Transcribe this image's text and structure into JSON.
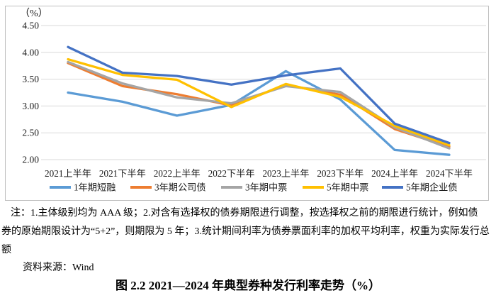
{
  "chart_data": {
    "type": "line",
    "title": "图 2.2  2021—2024 年典型券种发行利率走势（%）",
    "unit_label": "（%）",
    "ylabel": "",
    "xlabel": "",
    "ylim": [
      2.0,
      4.5
    ],
    "y_ticks": [
      "4.50",
      "4.00",
      "3.50",
      "3.00",
      "2.50",
      "2.00"
    ],
    "grid": "horizontal",
    "legend_position": "bottom",
    "categories": [
      "2021上半年",
      "2021下半年",
      "2022上半年",
      "2022下半年",
      "2023上半年",
      "2023下半年",
      "2024上半年",
      "2024下半年"
    ],
    "series": [
      {
        "name": "1年期短融",
        "color": "#5B9BD5",
        "values": [
          3.25,
          3.08,
          2.82,
          3.02,
          3.65,
          3.12,
          2.18,
          2.09
        ]
      },
      {
        "name": "3年期公司债",
        "color": "#ED7D31",
        "values": [
          3.8,
          3.37,
          3.22,
          3.01,
          3.39,
          3.21,
          2.57,
          2.24
        ]
      },
      {
        "name": "3年期中票",
        "color": "#A5A5A5",
        "values": [
          3.82,
          3.42,
          3.16,
          3.05,
          3.37,
          3.26,
          2.6,
          2.21
        ]
      },
      {
        "name": "5年期中票",
        "color": "#FFC000",
        "values": [
          3.87,
          3.58,
          3.49,
          2.98,
          3.41,
          3.17,
          2.63,
          2.27
        ]
      },
      {
        "name": "5年期企业债",
        "color": "#4472C4",
        "values": [
          4.1,
          3.62,
          3.56,
          3.4,
          3.57,
          3.7,
          2.67,
          2.31
        ]
      }
    ]
  },
  "notes": {
    "line1": "注：1.主体级别均为 AAA 级；2.对含有选择权的债券期限进行调整，按选择权之前的期限进行统计，例如债",
    "line2": "券的原始期限设计为“5+2”，则期限为 5 年；3.统计期间利率为债券票面利率的加权平均利率，权重为实际发行总",
    "line3": "额"
  },
  "source_line": "资料来源：Wind",
  "caption": "图 2.2  2021—2024 年典型券种发行利率走势（%）",
  "colors": {
    "frame_border": "#bfbfbf",
    "gridline": "#d9d9d9",
    "axis_text": "#1a1a1a"
  }
}
